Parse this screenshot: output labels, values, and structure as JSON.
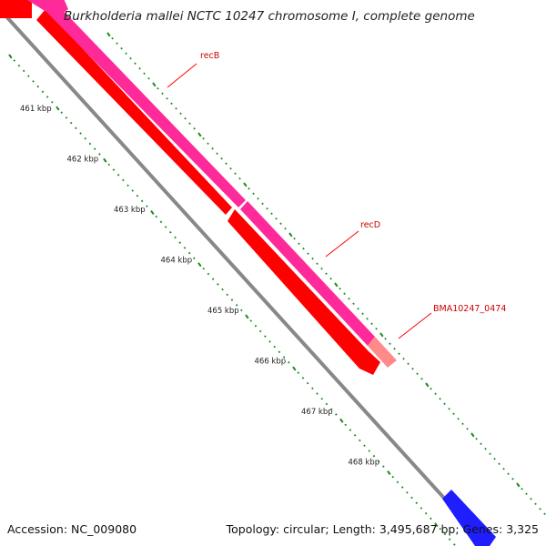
{
  "title": "Burkholderia mallei NCTC 10247 chromosome I, complete genome",
  "footer": {
    "accession": "Accession: NC_009080",
    "topology": "Topology: circular; Length: 3,495,687 bp; Genes: 3,325"
  },
  "ruler": {
    "labels": [
      "461 kbp",
      "462 kbp",
      "463 kbp",
      "464 kbp",
      "465 kbp",
      "466 kbp",
      "467 kbp",
      "468 kbp"
    ]
  },
  "genes": [
    {
      "name": "recB",
      "color": "#ff2a9a"
    },
    {
      "name": "recD",
      "color": "#ff2a9a"
    },
    {
      "name": "BMA10247_0474",
      "color": "#ff8a8a"
    }
  ],
  "colors": {
    "forward_feature": "#ff2a9a",
    "reverse_feature": "#ff0000",
    "pseudo_feature": "#ff8a8a",
    "backbone": "#888888",
    "tick": "#1a8c1a",
    "label_line": "#ff0000",
    "blue_feature": "#1e1eff"
  }
}
